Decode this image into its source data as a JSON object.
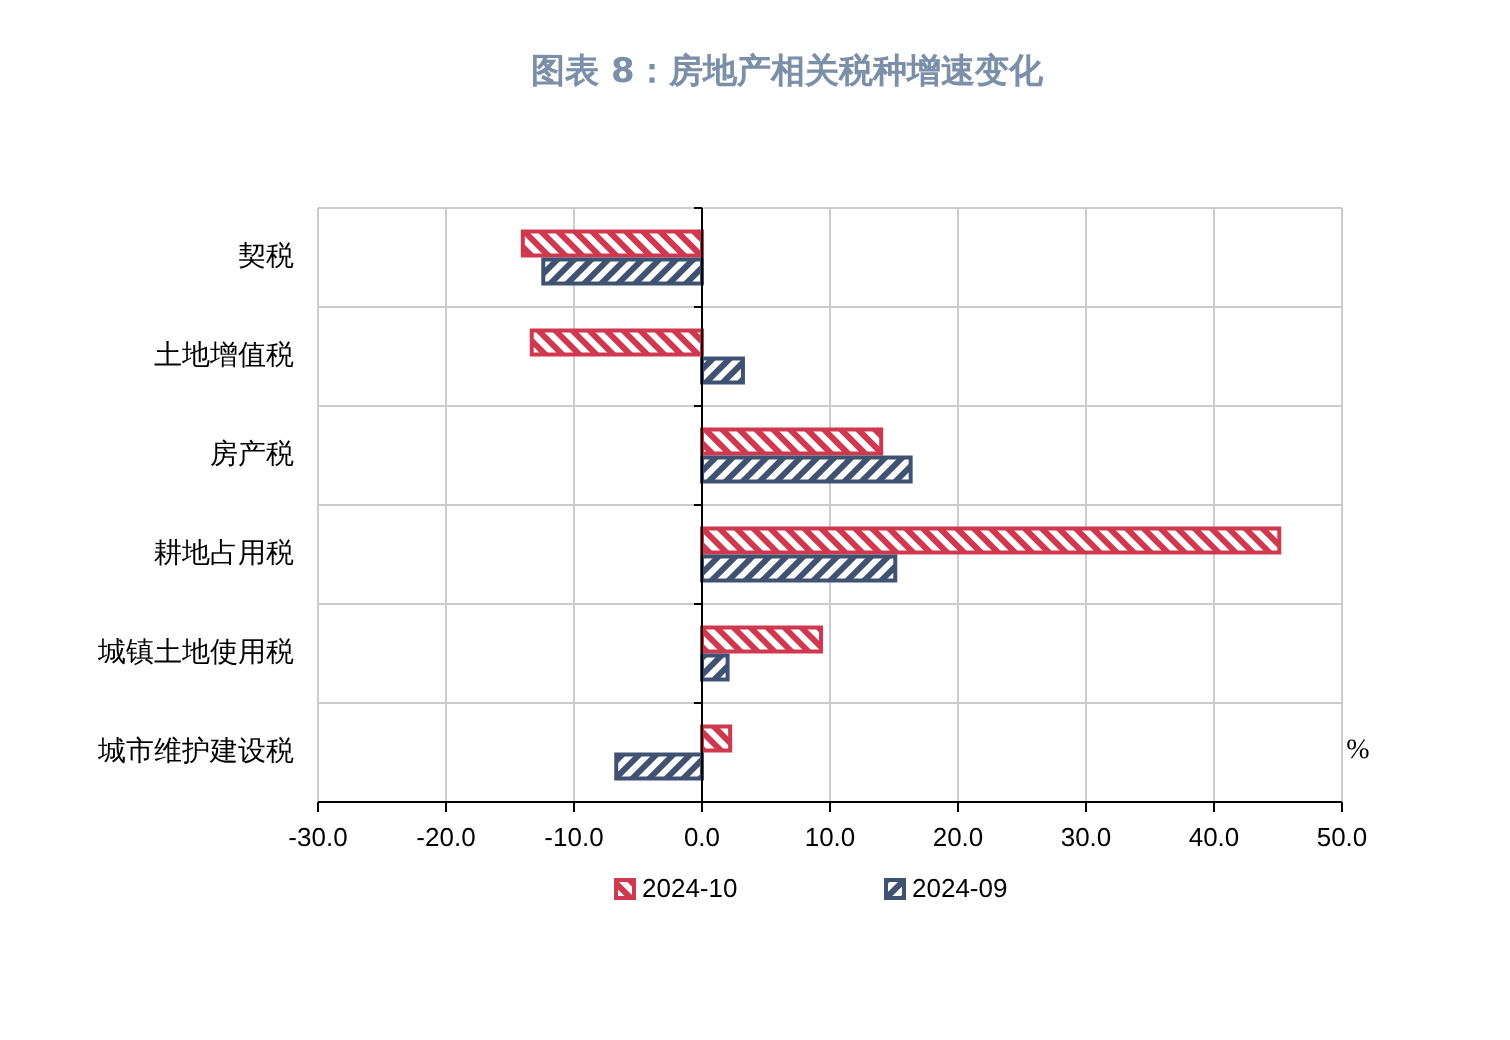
{
  "chart_data": {
    "type": "bar",
    "orientation": "horizontal",
    "title": "图表 8：房地产相关税种增速变化",
    "categories": [
      "契税",
      "土地增值税",
      "房产税",
      "耕地占用税",
      "城镇土地使用税",
      "城市维护建设税"
    ],
    "series": [
      {
        "name": "2024-10",
        "color": "#d0384f",
        "values": [
          -14.0,
          -13.3,
          14.0,
          45.1,
          9.3,
          2.2
        ]
      },
      {
        "name": "2024-09",
        "color": "#3f5272",
        "values": [
          -12.4,
          3.2,
          16.3,
          15.1,
          2.0,
          -6.7
        ]
      }
    ],
    "xlim": [
      -30,
      50
    ],
    "xticks": [
      {
        "value": -30,
        "label": "-30.0"
      },
      {
        "value": -20,
        "label": "-20.0"
      },
      {
        "value": -10,
        "label": "-10.0"
      },
      {
        "value": 0,
        "label": "0.0"
      },
      {
        "value": 10,
        "label": "10.0"
      },
      {
        "value": 20,
        "label": "20.0"
      },
      {
        "value": 30,
        "label": "30.0"
      },
      {
        "value": 40,
        "label": "40.0"
      },
      {
        "value": 50,
        "label": "50.0"
      }
    ],
    "grid": true,
    "legend": "bottom",
    "annotations": [
      "%"
    ]
  }
}
